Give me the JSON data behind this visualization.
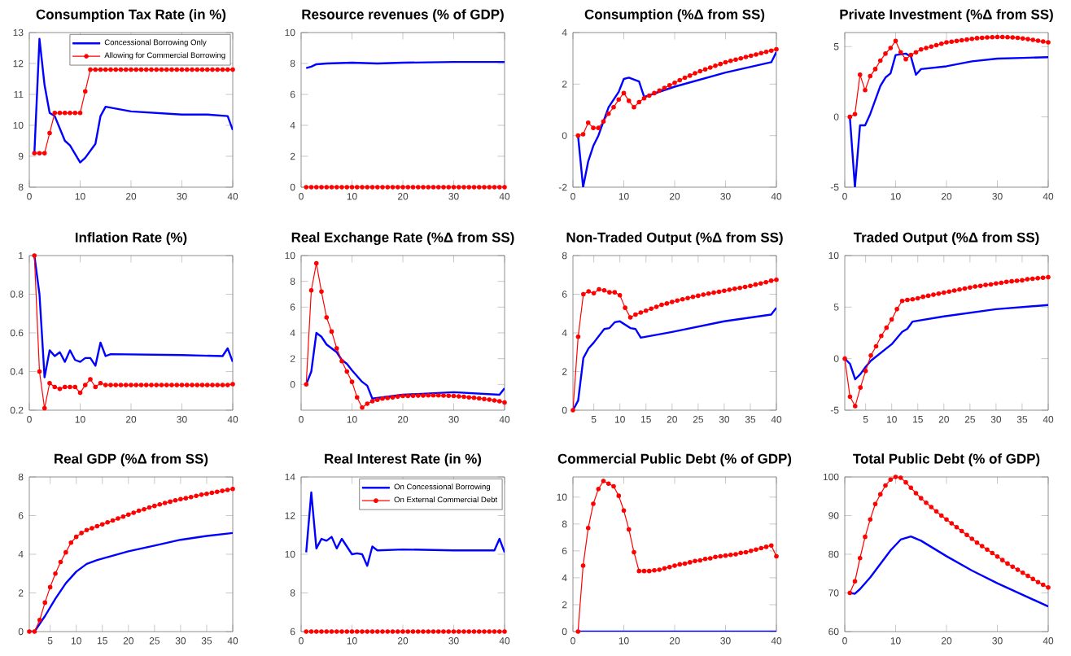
{
  "chart_data": [
    {
      "type": "line",
      "title": "Consumption Tax Rate (in %)",
      "xlim": [
        0,
        40
      ],
      "xticks": [
        0,
        10,
        20,
        30,
        40
      ],
      "ylim": [
        8,
        13
      ],
      "yticks": [
        8,
        9,
        10,
        11,
        12,
        13
      ],
      "legend": "top right",
      "x": [
        1,
        2,
        3,
        4,
        5,
        6,
        7,
        8,
        9,
        10,
        11,
        12,
        13,
        14,
        15,
        16,
        17,
        18,
        19,
        20,
        21,
        22,
        23,
        24,
        25,
        26,
        27,
        28,
        29,
        30,
        31,
        32,
        33,
        34,
        35,
        36,
        37,
        38,
        39,
        40
      ],
      "series": [
        {
          "name": "Concessional Borrowing Only",
          "color": "#0000ff",
          "marker": "none",
          "x": [
            1,
            2,
            3,
            4,
            5,
            7,
            8,
            10,
            11,
            13,
            14,
            15,
            20,
            30,
            35,
            39,
            40
          ],
          "values": [
            9.1,
            12.8,
            11.3,
            10.4,
            10.3,
            9.5,
            9.35,
            8.8,
            8.95,
            9.4,
            10.3,
            10.6,
            10.45,
            10.35,
            10.35,
            10.3,
            9.85
          ]
        },
        {
          "name": "Allowing for Commercial Borrowing",
          "color": "#ff0000",
          "marker": "circle",
          "values": [
            9.1,
            9.1,
            9.1,
            9.75,
            10.4,
            10.4,
            10.4,
            10.4,
            10.4,
            10.4,
            11.1,
            11.8,
            11.8,
            11.8,
            11.8,
            11.8,
            11.8,
            11.8,
            11.8,
            11.8,
            11.8,
            11.8,
            11.8,
            11.8,
            11.8,
            11.8,
            11.8,
            11.8,
            11.8,
            11.8,
            11.8,
            11.8,
            11.8,
            11.8,
            11.8,
            11.8,
            11.8,
            11.8,
            11.8,
            11.8
          ]
        }
      ]
    },
    {
      "type": "line",
      "title": "Resource revenues (% of GDP)",
      "xlim": [
        0,
        40
      ],
      "xticks": [
        0,
        10,
        20,
        30,
        40
      ],
      "ylim": [
        0,
        10
      ],
      "yticks": [
        0,
        2,
        4,
        6,
        8,
        10
      ],
      "x": [
        1,
        2,
        3,
        4,
        5,
        6,
        7,
        8,
        9,
        10,
        11,
        12,
        13,
        14,
        15,
        16,
        17,
        18,
        19,
        20,
        21,
        22,
        23,
        24,
        25,
        26,
        27,
        28,
        29,
        30,
        31,
        32,
        33,
        34,
        35,
        36,
        37,
        38,
        39,
        40
      ],
      "series": [
        {
          "color": "#0000ff",
          "marker": "none",
          "x": [
            1,
            2,
            3,
            5,
            10,
            15,
            20,
            30,
            40
          ],
          "values": [
            7.7,
            7.8,
            7.95,
            8.0,
            8.05,
            8.0,
            8.05,
            8.1,
            8.1
          ]
        },
        {
          "color": "#ff0000",
          "marker": "circle",
          "values": [
            0,
            0,
            0,
            0,
            0,
            0,
            0,
            0,
            0,
            0,
            0,
            0,
            0,
            0,
            0,
            0,
            0,
            0,
            0,
            0,
            0,
            0,
            0,
            0,
            0,
            0,
            0,
            0,
            0,
            0,
            0,
            0,
            0,
            0,
            0,
            0,
            0,
            0,
            0,
            0
          ]
        }
      ]
    },
    {
      "type": "line",
      "title": "Consumption (%Δ from SS)",
      "xlim": [
        0,
        40
      ],
      "xticks": [
        0,
        10,
        20,
        30,
        40
      ],
      "ylim": [
        -2,
        4
      ],
      "yticks": [
        -2,
        0,
        2,
        4
      ],
      "x": [
        1,
        2,
        3,
        4,
        5,
        6,
        7,
        8,
        9,
        10,
        11,
        12,
        13,
        14,
        15,
        16,
        17,
        18,
        19,
        20,
        21,
        22,
        23,
        24,
        25,
        26,
        27,
        28,
        29,
        30,
        31,
        32,
        33,
        34,
        35,
        36,
        37,
        38,
        39,
        40
      ],
      "series": [
        {
          "color": "#0000ff",
          "marker": "none",
          "x": [
            1,
            2,
            3,
            4,
            5,
            7,
            9,
            10,
            11,
            13,
            14,
            20,
            30,
            39,
            40
          ],
          "values": [
            0,
            -2.0,
            -1.0,
            -0.4,
            0,
            1.1,
            1.7,
            2.2,
            2.25,
            2.1,
            1.5,
            1.9,
            2.45,
            2.85,
            3.25
          ]
        },
        {
          "color": "#ff0000",
          "marker": "circle",
          "values": [
            0,
            0.05,
            0.5,
            0.3,
            0.3,
            0.55,
            0.85,
            1.1,
            1.4,
            1.65,
            1.35,
            1.1,
            1.3,
            1.45,
            1.55,
            1.65,
            1.75,
            1.85,
            1.95,
            2.05,
            2.15,
            2.25,
            2.33,
            2.42,
            2.5,
            2.57,
            2.64,
            2.71,
            2.78,
            2.85,
            2.9,
            2.95,
            3.0,
            3.05,
            3.1,
            3.15,
            3.2,
            3.25,
            3.3,
            3.35
          ]
        }
      ]
    },
    {
      "type": "line",
      "title": "Private Investment (%Δ from SS)",
      "xlim": [
        0,
        40
      ],
      "xticks": [
        0,
        10,
        20,
        30,
        40
      ],
      "ylim": [
        -5,
        6
      ],
      "yticks": [
        -5,
        0,
        5
      ],
      "x": [
        1,
        2,
        3,
        4,
        5,
        6,
        7,
        8,
        9,
        10,
        11,
        12,
        13,
        14,
        15,
        16,
        17,
        18,
        19,
        20,
        21,
        22,
        23,
        24,
        25,
        26,
        27,
        28,
        29,
        30,
        31,
        32,
        33,
        34,
        35,
        36,
        37,
        38,
        39,
        40
      ],
      "series": [
        {
          "color": "#0000ff",
          "marker": "none",
          "x": [
            1,
            2,
            3,
            4,
            5,
            7,
            8,
            9,
            10,
            12,
            13,
            14,
            15,
            20,
            25,
            30,
            35,
            40
          ],
          "values": [
            0,
            -5,
            -0.6,
            -0.6,
            0.2,
            2.2,
            2.8,
            3.1,
            4.4,
            4.5,
            4.3,
            3.0,
            3.4,
            3.6,
            3.95,
            4.15,
            4.2,
            4.25
          ]
        },
        {
          "color": "#ff0000",
          "marker": "circle",
          "values": [
            0,
            0.2,
            3.0,
            1.9,
            2.9,
            3.4,
            4.0,
            4.5,
            4.9,
            5.4,
            4.6,
            4.1,
            4.4,
            4.6,
            4.8,
            4.9,
            5.0,
            5.1,
            5.2,
            5.3,
            5.35,
            5.4,
            5.45,
            5.5,
            5.55,
            5.6,
            5.62,
            5.65,
            5.67,
            5.68,
            5.68,
            5.67,
            5.65,
            5.62,
            5.58,
            5.53,
            5.48,
            5.42,
            5.36,
            5.3
          ]
        }
      ]
    },
    {
      "type": "line",
      "title": "Inflation Rate (%)",
      "xlim": [
        0,
        40
      ],
      "xticks": [
        0,
        10,
        20,
        30,
        40
      ],
      "ylim": [
        0.2,
        1
      ],
      "yticks": [
        0.2,
        0.4,
        0.6,
        0.8,
        1
      ],
      "x": [
        1,
        2,
        3,
        4,
        5,
        6,
        7,
        8,
        9,
        10,
        11,
        12,
        13,
        14,
        15,
        16,
        17,
        18,
        19,
        20,
        21,
        22,
        23,
        24,
        25,
        26,
        27,
        28,
        29,
        30,
        31,
        32,
        33,
        34,
        35,
        36,
        37,
        38,
        39,
        40
      ],
      "series": [
        {
          "color": "#0000ff",
          "marker": "none",
          "x": [
            1,
            2,
            3,
            4,
            5,
            6,
            7,
            8,
            9,
            10,
            11,
            12,
            13,
            14,
            15,
            16,
            30,
            38,
            39,
            40
          ],
          "values": [
            1.0,
            0.8,
            0.37,
            0.51,
            0.48,
            0.5,
            0.45,
            0.51,
            0.46,
            0.45,
            0.47,
            0.47,
            0.43,
            0.55,
            0.48,
            0.49,
            0.485,
            0.48,
            0.52,
            0.45
          ]
        },
        {
          "color": "#ff0000",
          "marker": "circle",
          "values": [
            1.0,
            0.4,
            0.21,
            0.34,
            0.32,
            0.31,
            0.32,
            0.32,
            0.32,
            0.29,
            0.33,
            0.36,
            0.32,
            0.34,
            0.33,
            0.33,
            0.33,
            0.33,
            0.33,
            0.33,
            0.33,
            0.33,
            0.33,
            0.33,
            0.33,
            0.33,
            0.33,
            0.33,
            0.33,
            0.33,
            0.33,
            0.33,
            0.33,
            0.33,
            0.33,
            0.33,
            0.33,
            0.33,
            0.33,
            0.335
          ]
        }
      ]
    },
    {
      "type": "line",
      "title": "Real Exchange Rate (%Δ from SS)",
      "xlim": [
        0,
        40
      ],
      "xticks": [
        0,
        10,
        20,
        30,
        40
      ],
      "ylim": [
        -2,
        10
      ],
      "yticks": [
        0,
        2,
        4,
        6,
        8,
        10
      ],
      "x": [
        1,
        2,
        3,
        4,
        5,
        6,
        7,
        8,
        9,
        10,
        11,
        12,
        13,
        14,
        15,
        16,
        17,
        18,
        19,
        20,
        21,
        22,
        23,
        24,
        25,
        26,
        27,
        28,
        29,
        30,
        31,
        32,
        33,
        34,
        35,
        36,
        37,
        38,
        39,
        40
      ],
      "series": [
        {
          "color": "#0000ff",
          "marker": "none",
          "x": [
            1,
            2,
            3,
            4,
            5,
            7,
            8,
            9,
            10,
            12,
            13,
            14,
            20,
            30,
            39,
            40
          ],
          "values": [
            0,
            1.0,
            4.0,
            3.7,
            3.1,
            2.5,
            1.9,
            1.6,
            1.1,
            0.2,
            -0.1,
            -1.1,
            -0.8,
            -0.6,
            -0.8,
            -0.3
          ]
        },
        {
          "color": "#ff0000",
          "marker": "circle",
          "values": [
            0,
            7.3,
            9.4,
            7.2,
            5.2,
            4.1,
            2.8,
            1.8,
            1.0,
            0.2,
            -1.0,
            -1.8,
            -1.5,
            -1.3,
            -1.2,
            -1.1,
            -1.05,
            -1.0,
            -0.95,
            -0.9,
            -0.9,
            -0.88,
            -0.87,
            -0.86,
            -0.85,
            -0.85,
            -0.85,
            -0.86,
            -0.88,
            -0.9,
            -0.93,
            -0.96,
            -1.0,
            -1.04,
            -1.08,
            -1.13,
            -1.18,
            -1.24,
            -1.3,
            -1.4
          ]
        }
      ]
    },
    {
      "type": "line",
      "title": "Non-Traded Output (%Δ from SS)",
      "xlim": [
        1,
        40
      ],
      "xticks": [
        5,
        10,
        15,
        20,
        25,
        30,
        35,
        40
      ],
      "ylim": [
        0,
        8
      ],
      "yticks": [
        0,
        2,
        4,
        6,
        8
      ],
      "x": [
        1,
        2,
        3,
        4,
        5,
        6,
        7,
        8,
        9,
        10,
        11,
        12,
        13,
        14,
        15,
        16,
        17,
        18,
        19,
        20,
        21,
        22,
        23,
        24,
        25,
        26,
        27,
        28,
        29,
        30,
        31,
        32,
        33,
        34,
        35,
        36,
        37,
        38,
        39,
        40
      ],
      "series": [
        {
          "color": "#0000ff",
          "marker": "none",
          "x": [
            1,
            2,
            3,
            4,
            5,
            7,
            8,
            9,
            10,
            12,
            13,
            14,
            20,
            30,
            39,
            40
          ],
          "values": [
            0,
            0.5,
            2.7,
            3.2,
            3.5,
            4.2,
            4.25,
            4.55,
            4.6,
            4.25,
            4.2,
            3.75,
            4.05,
            4.6,
            4.95,
            5.3
          ]
        },
        {
          "color": "#ff0000",
          "marker": "circle",
          "values": [
            0,
            3.8,
            6.0,
            6.15,
            6.05,
            6.25,
            6.2,
            6.1,
            6.1,
            5.95,
            5.3,
            4.8,
            4.95,
            5.05,
            5.15,
            5.25,
            5.35,
            5.45,
            5.52,
            5.6,
            5.67,
            5.74,
            5.8,
            5.86,
            5.92,
            5.98,
            6.03,
            6.08,
            6.13,
            6.18,
            6.23,
            6.28,
            6.33,
            6.38,
            6.43,
            6.5,
            6.56,
            6.62,
            6.7,
            6.75
          ]
        }
      ]
    },
    {
      "type": "line",
      "title": "Traded Output (%Δ from SS)",
      "xlim": [
        1,
        40
      ],
      "xticks": [
        5,
        10,
        15,
        20,
        25,
        30,
        35,
        40
      ],
      "ylim": [
        -5,
        10
      ],
      "yticks": [
        -5,
        0,
        5,
        10
      ],
      "x": [
        1,
        2,
        3,
        4,
        5,
        6,
        7,
        8,
        9,
        10,
        11,
        12,
        13,
        14,
        15,
        16,
        17,
        18,
        19,
        20,
        21,
        22,
        23,
        24,
        25,
        26,
        27,
        28,
        29,
        30,
        31,
        32,
        33,
        34,
        35,
        36,
        37,
        38,
        39,
        40
      ],
      "series": [
        {
          "color": "#0000ff",
          "marker": "none",
          "x": [
            1,
            2,
            3,
            4,
            5,
            6,
            8,
            10,
            12,
            13,
            14,
            20,
            30,
            40
          ],
          "values": [
            0,
            -0.5,
            -2.0,
            -1.5,
            -0.8,
            -0.2,
            0.6,
            1.4,
            2.6,
            2.9,
            3.6,
            4.1,
            4.8,
            5.2
          ]
        },
        {
          "color": "#ff0000",
          "marker": "circle",
          "values": [
            0,
            -3.7,
            -4.6,
            -2.8,
            -1.2,
            0.3,
            1.2,
            2.2,
            3.0,
            3.8,
            4.8,
            5.6,
            5.7,
            5.75,
            5.85,
            6.0,
            6.1,
            6.2,
            6.3,
            6.4,
            6.5,
            6.6,
            6.7,
            6.8,
            6.9,
            7.0,
            7.05,
            7.15,
            7.2,
            7.3,
            7.35,
            7.45,
            7.5,
            7.55,
            7.6,
            7.7,
            7.75,
            7.8,
            7.85,
            7.9
          ]
        }
      ]
    },
    {
      "type": "line",
      "title": "Real GDP (%Δ from SS)",
      "xlim": [
        1,
        40
      ],
      "xticks": [
        5,
        10,
        15,
        20,
        25,
        30,
        35,
        40
      ],
      "ylim": [
        0,
        8
      ],
      "yticks": [
        0,
        2,
        4,
        6,
        8
      ],
      "x": [
        1,
        2,
        3,
        4,
        5,
        6,
        7,
        8,
        9,
        10,
        11,
        12,
        13,
        14,
        15,
        16,
        17,
        18,
        19,
        20,
        21,
        22,
        23,
        24,
        25,
        26,
        27,
        28,
        29,
        30,
        31,
        32,
        33,
        34,
        35,
        36,
        37,
        38,
        39,
        40
      ],
      "series": [
        {
          "color": "#0000ff",
          "marker": "none",
          "x": [
            1,
            2,
            4,
            6,
            8,
            10,
            12,
            14,
            20,
            25,
            30,
            35,
            40
          ],
          "values": [
            0,
            0,
            0.8,
            1.7,
            2.5,
            3.1,
            3.5,
            3.7,
            4.15,
            4.45,
            4.75,
            4.95,
            5.1
          ]
        },
        {
          "color": "#ff0000",
          "marker": "circle",
          "values": [
            0,
            0,
            0.6,
            1.5,
            2.3,
            3.0,
            3.6,
            4.1,
            4.6,
            4.9,
            5.1,
            5.25,
            5.35,
            5.45,
            5.55,
            5.65,
            5.75,
            5.85,
            5.95,
            6.05,
            6.15,
            6.25,
            6.33,
            6.42,
            6.5,
            6.58,
            6.65,
            6.72,
            6.79,
            6.85,
            6.9,
            6.96,
            7.02,
            7.08,
            7.13,
            7.18,
            7.23,
            7.28,
            7.33,
            7.38
          ]
        }
      ]
    },
    {
      "type": "line",
      "title": "Real Interest Rate (in %)",
      "xlim": [
        0,
        40
      ],
      "xticks": [
        0,
        10,
        20,
        30,
        40
      ],
      "ylim": [
        6,
        14
      ],
      "yticks": [
        6,
        8,
        10,
        12,
        14
      ],
      "legend": "top right",
      "x": [
        1,
        2,
        3,
        4,
        5,
        6,
        7,
        8,
        9,
        10,
        11,
        12,
        13,
        14,
        15,
        16,
        17,
        18,
        19,
        20,
        21,
        22,
        23,
        24,
        25,
        26,
        27,
        28,
        29,
        30,
        31,
        32,
        33,
        34,
        35,
        36,
        37,
        38,
        39,
        40
      ],
      "series": [
        {
          "name": "On Concessional Borrowing",
          "color": "#0000ff",
          "marker": "none",
          "x": [
            1,
            2,
            3,
            4,
            5,
            6,
            7,
            8,
            10,
            11,
            12,
            13,
            14,
            15,
            20,
            30,
            38,
            39,
            40
          ],
          "values": [
            10.1,
            13.2,
            10.3,
            10.8,
            10.7,
            10.9,
            10.3,
            10.8,
            10.0,
            10.05,
            10.0,
            9.4,
            10.4,
            10.2,
            10.25,
            10.2,
            10.2,
            10.8,
            10.1
          ]
        },
        {
          "name": "On External Commercial Debt",
          "color": "#ff0000",
          "marker": "circle",
          "values": [
            6,
            6,
            6,
            6,
            6,
            6,
            6,
            6,
            6,
            6,
            6,
            6,
            6,
            6,
            6,
            6,
            6,
            6,
            6,
            6,
            6,
            6,
            6,
            6,
            6,
            6,
            6,
            6,
            6,
            6,
            6,
            6,
            6,
            6,
            6,
            6,
            6,
            6,
            6,
            6
          ]
        }
      ]
    },
    {
      "type": "line",
      "title": "Commercial Public Debt (% of GDP)",
      "xlim": [
        0,
        40
      ],
      "xticks": [
        0,
        10,
        20,
        30,
        40
      ],
      "ylim": [
        0,
        11.5
      ],
      "yticks": [
        0,
        2,
        4,
        6,
        8,
        10
      ],
      "x": [
        1,
        2,
        3,
        4,
        5,
        6,
        7,
        8,
        9,
        10,
        11,
        12,
        13,
        14,
        15,
        16,
        17,
        18,
        19,
        20,
        21,
        22,
        23,
        24,
        25,
        26,
        27,
        28,
        29,
        30,
        31,
        32,
        33,
        34,
        35,
        36,
        37,
        38,
        39,
        40
      ],
      "series": [
        {
          "color": "#0000ff",
          "marker": "none",
          "x": [
            1,
            40
          ],
          "values": [
            0,
            0
          ]
        },
        {
          "color": "#ff0000",
          "marker": "circle",
          "values": [
            0,
            4.9,
            7.7,
            9.5,
            10.6,
            11.2,
            11.0,
            10.8,
            10.1,
            9.0,
            7.6,
            5.9,
            4.5,
            4.5,
            4.5,
            4.55,
            4.6,
            4.7,
            4.8,
            4.9,
            5.0,
            5.05,
            5.15,
            5.25,
            5.3,
            5.4,
            5.45,
            5.55,
            5.6,
            5.65,
            5.7,
            5.75,
            5.85,
            5.9,
            6.0,
            6.1,
            6.2,
            6.3,
            6.4,
            5.6
          ]
        }
      ]
    },
    {
      "type": "line",
      "title": "Total Public Debt (% of GDP)",
      "xlim": [
        0,
        40
      ],
      "xticks": [
        0,
        10,
        20,
        30,
        40
      ],
      "ylim": [
        60,
        100
      ],
      "yticks": [
        60,
        70,
        80,
        90,
        100
      ],
      "x": [
        1,
        2,
        3,
        4,
        5,
        6,
        7,
        8,
        9,
        10,
        11,
        12,
        13,
        14,
        15,
        16,
        17,
        18,
        19,
        20,
        21,
        22,
        23,
        24,
        25,
        26,
        27,
        28,
        29,
        30,
        31,
        32,
        33,
        34,
        35,
        36,
        37,
        38,
        39,
        40
      ],
      "series": [
        {
          "color": "#0000ff",
          "marker": "none",
          "x": [
            1,
            2,
            3,
            5,
            7,
            9,
            11,
            13,
            15,
            20,
            25,
            30,
            35,
            40
          ],
          "values": [
            70,
            69.8,
            71,
            74,
            77.5,
            81,
            83.8,
            84.6,
            83.5,
            79.5,
            75.8,
            72.5,
            69.5,
            66.5
          ]
        },
        {
          "color": "#ff0000",
          "marker": "circle",
          "values": [
            70,
            73,
            79,
            84.5,
            89,
            93,
            95.5,
            97.8,
            99.3,
            100,
            99.8,
            98.6,
            97.2,
            95.8,
            94.5,
            93.3,
            92.2,
            91.1,
            90,
            89,
            88,
            87,
            86,
            85,
            84,
            83,
            82.1,
            81.2,
            80.3,
            79.4,
            78.5,
            77.6,
            76.8,
            76,
            75.2,
            74.4,
            73.6,
            72.8,
            72.1,
            71.4
          ]
        }
      ]
    }
  ]
}
